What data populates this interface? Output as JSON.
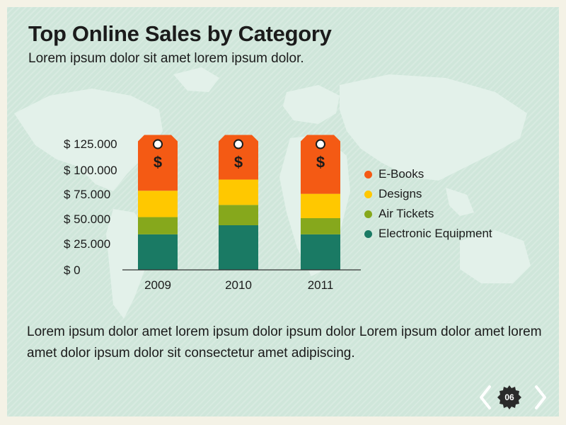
{
  "title": "Top Online Sales by Category",
  "subtitle": "Lorem ipsum dolor sit amet lorem ipsum dolor.",
  "body_text": "Lorem ipsum dolor amet lorem ipsum dolor ipsum dolor Lorem ipsum dolor amet lorem amet dolor ipsum dolor sit consectetur  amet adipiscing.",
  "page_number": "06",
  "tag_symbol": "$",
  "colors": {
    "background": "#cfe6da",
    "map": "#e2f1ea",
    "ebooks": "#f45a14",
    "designs": "#ffc800",
    "air_tickets": "#86a81c",
    "electronic_equipment": "#1a7a64"
  },
  "chart_data": {
    "type": "bar",
    "stacked": true,
    "categories": [
      "2009",
      "2010",
      "2011"
    ],
    "y_tick_labels": [
      "$ 0",
      "$ 25.000",
      "$ 50.000",
      "$ 75.000",
      "$ 100.000",
      "$ 125.000"
    ],
    "y_ticks": [
      0,
      25000,
      50000,
      75000,
      100000,
      125000
    ],
    "ylim": [
      0,
      130000
    ],
    "series": [
      {
        "name": "Electronic Equipment",
        "color": "#1a7a64",
        "values": [
          35000,
          44000,
          35000
        ]
      },
      {
        "name": "Air Tickets",
        "color": "#86a81c",
        "values": [
          17000,
          20000,
          16000
        ]
      },
      {
        "name": "Designs",
        "color": "#ffc800",
        "values": [
          26000,
          25000,
          24000
        ]
      },
      {
        "name": "E-Books",
        "color": "#f45a14",
        "values": [
          55000,
          44000,
          58000
        ]
      }
    ],
    "legend_order": [
      "E-Books",
      "Designs",
      "Air Tickets",
      "Electronic Equipment"
    ],
    "legend_position": "right",
    "grid": false,
    "xlabel": "",
    "ylabel": ""
  }
}
